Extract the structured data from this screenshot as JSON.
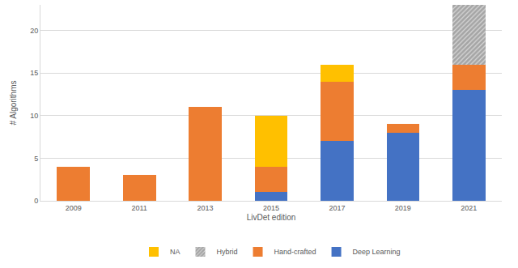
{
  "chart_data": {
    "type": "bar",
    "stacked": true,
    "x_label": "LivDet edition",
    "y_label": "# Algorithms",
    "categories": [
      "2009",
      "2011",
      "2013",
      "2015",
      "2017",
      "2019",
      "2021"
    ],
    "series": [
      {
        "name": "Deep Learning",
        "color": "#4472c4",
        "values": [
          0,
          0,
          0,
          1,
          7,
          8,
          13
        ]
      },
      {
        "name": "Hand-crafted",
        "color": "#ed7d31",
        "values": [
          4,
          3,
          11,
          3,
          7,
          1,
          3
        ]
      },
      {
        "name": "Hybrid",
        "color": "#a5a5a5",
        "values": [
          0,
          0,
          0,
          0,
          0,
          0,
          7
        ]
      },
      {
        "name": "NA",
        "color": "#ffc000",
        "values": [
          0,
          0,
          0,
          6,
          2,
          0,
          0
        ]
      }
    ],
    "ylim": [
      0,
      23
    ],
    "yticks": [
      0,
      5,
      10,
      15,
      20
    ],
    "grid": true,
    "legend": "bottom"
  }
}
